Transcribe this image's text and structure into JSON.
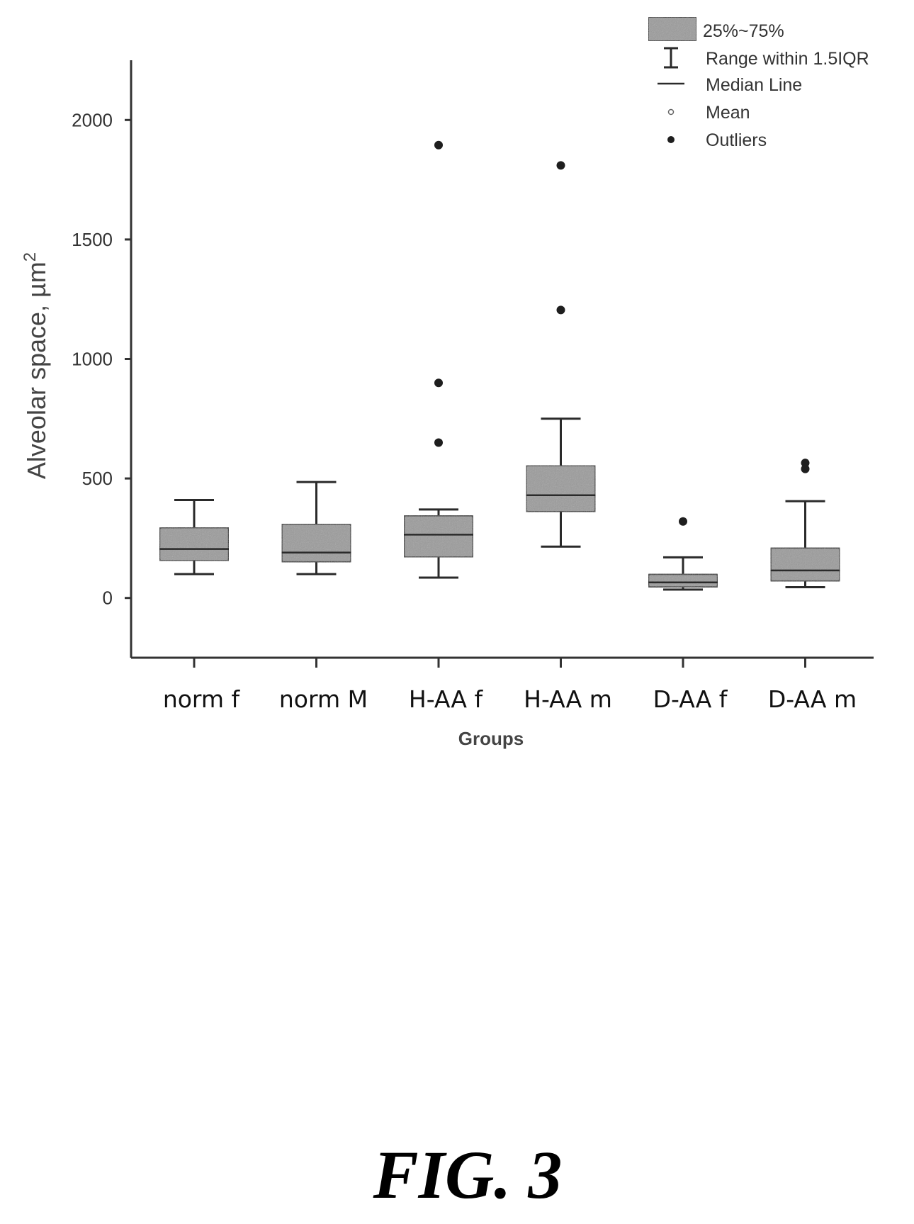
{
  "chart_data": {
    "type": "box",
    "xlabel": "Groups",
    "ylabel": "Alveolar space, µm",
    "ylabel_superscript": "2",
    "ylim": [
      -250,
      2250
    ],
    "yticks": [
      0,
      500,
      1000,
      1500,
      2000
    ],
    "categories": [
      "norm f",
      "norm M",
      "H-AA f",
      "H-AA m",
      "D-AA f",
      "D-AA m"
    ],
    "boxes": [
      {
        "q1": 155,
        "median": 205,
        "q3": 295,
        "whisker_low": 100,
        "whisker_high": 410,
        "outliers": []
      },
      {
        "q1": 150,
        "median": 190,
        "q3": 310,
        "whisker_low": 100,
        "whisker_high": 485,
        "outliers": []
      },
      {
        "q1": 170,
        "median": 265,
        "q3": 345,
        "whisker_low": 85,
        "whisker_high": 370,
        "outliers": [
          650,
          900,
          1895
        ]
      },
      {
        "q1": 360,
        "median": 430,
        "q3": 555,
        "whisker_low": 215,
        "whisker_high": 750,
        "outliers": [
          1205,
          1810
        ]
      },
      {
        "q1": 45,
        "median": 65,
        "q3": 100,
        "whisker_low": 35,
        "whisker_high": 170,
        "outliers": [
          320
        ]
      },
      {
        "q1": 70,
        "median": 115,
        "q3": 210,
        "whisker_low": 45,
        "whisker_high": 405,
        "outliers": [
          540,
          565
        ]
      }
    ],
    "legend": {
      "position": "top-right",
      "entries": [
        "25%~75%",
        "Range within 1.5IQR",
        "Median Line",
        "Mean",
        "Outliers"
      ]
    },
    "colors": {
      "box_fill": "#9a9a9a",
      "stroke": "#2a2a2a",
      "outlier": "#1e1e1e"
    }
  },
  "caption": "FIG. 3"
}
